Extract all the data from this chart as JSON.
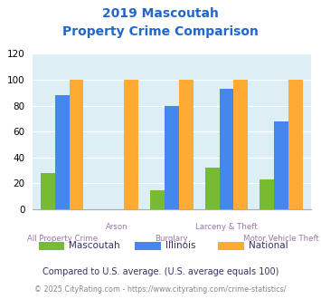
{
  "title_line1": "2019 Mascoutah",
  "title_line2": "Property Crime Comparison",
  "categories": [
    "All Property Crime",
    "Arson",
    "Burglary",
    "Larceny & Theft",
    "Motor Vehicle Theft"
  ],
  "mascoutah": [
    28,
    0,
    15,
    32,
    23
  ],
  "illinois": [
    88,
    0,
    80,
    93,
    68
  ],
  "national": [
    100,
    100,
    100,
    100,
    100
  ],
  "bar_colors": {
    "mascoutah": "#77bb33",
    "illinois": "#4488ee",
    "national": "#ffaa33"
  },
  "ylim": [
    0,
    120
  ],
  "yticks": [
    0,
    20,
    40,
    60,
    80,
    100,
    120
  ],
  "bg_color": "#ddeef5",
  "title_color": "#2266cc",
  "xlabel_color": "#9977aa",
  "footnote1": "Compared to U.S. average. (U.S. average equals 100)",
  "footnote2": "© 2025 CityRating.com - https://www.cityrating.com/crime-statistics/",
  "footnote1_color": "#333366",
  "footnote2_color": "#888888",
  "footnote2_link_color": "#3388cc",
  "legend_labels": [
    "Mascoutah",
    "Illinois",
    "National"
  ],
  "legend_label_color": "#333366"
}
